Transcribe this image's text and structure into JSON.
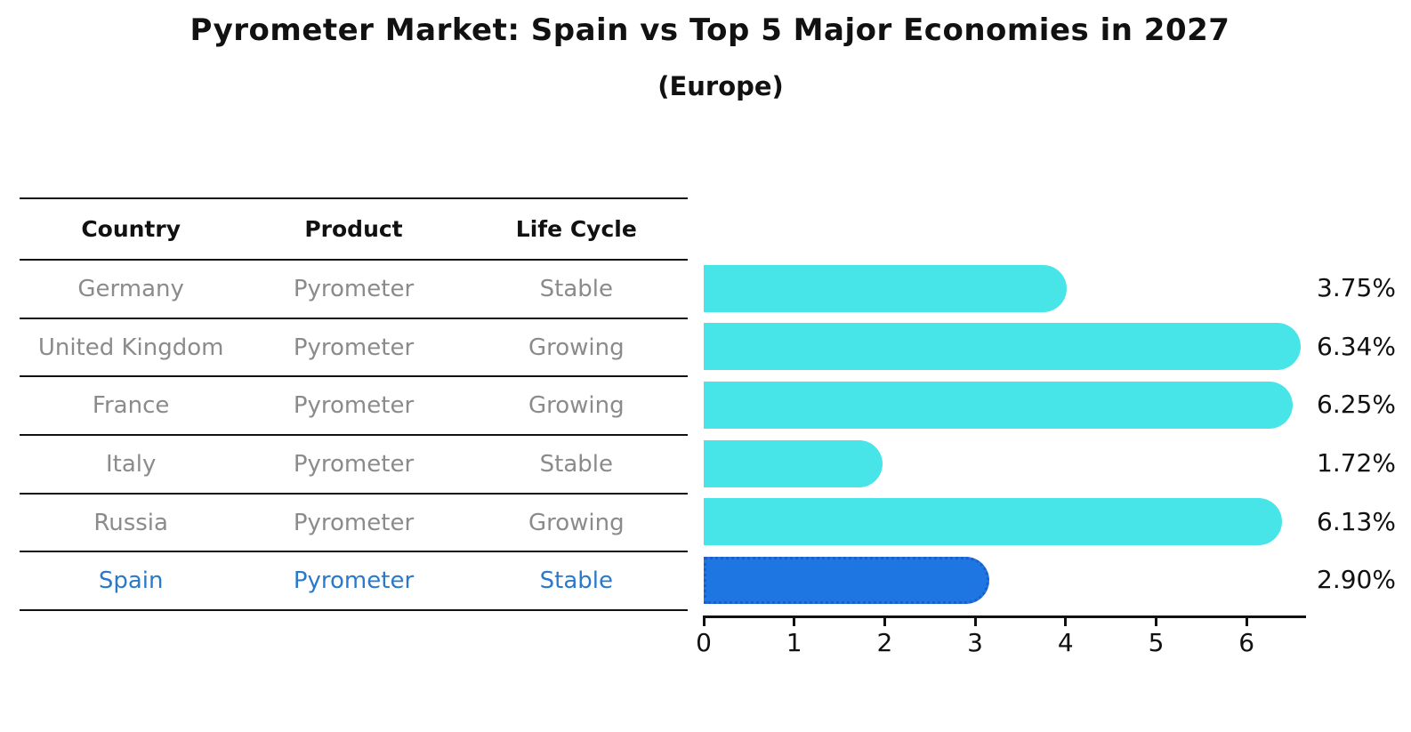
{
  "title": "Pyrometer Market: Spain vs Top 5 Major Economies in 2027",
  "subtitle": "(Europe)",
  "table": {
    "headers": [
      "Country",
      "Product",
      "Life Cycle"
    ],
    "rows": [
      {
        "country": "Germany",
        "product": "Pyrometer",
        "life_cycle": "Stable",
        "highlight": false
      },
      {
        "country": "United Kingdom",
        "product": "Pyrometer",
        "life_cycle": "Growing",
        "highlight": false
      },
      {
        "country": "France",
        "product": "Pyrometer",
        "life_cycle": "Growing",
        "highlight": false
      },
      {
        "country": "Italy",
        "product": "Pyrometer",
        "life_cycle": "Stable",
        "highlight": false
      },
      {
        "country": "Russia",
        "product": "Pyrometer",
        "life_cycle": "Growing",
        "highlight": false
      },
      {
        "country": "Spain",
        "product": "Pyrometer",
        "life_cycle": "Stable",
        "highlight": true
      }
    ]
  },
  "chart_data": {
    "type": "bar",
    "orientation": "horizontal",
    "title": "Pyrometer Market: Spain vs Top 5 Major Economies in 2027",
    "subtitle": "(Europe)",
    "categories": [
      "Germany",
      "United Kingdom",
      "France",
      "Italy",
      "Russia",
      "Spain"
    ],
    "values": [
      3.75,
      6.34,
      6.25,
      1.72,
      6.13,
      2.9
    ],
    "value_labels": [
      "3.75%",
      "6.34%",
      "6.25%",
      "1.72%",
      "6.13%",
      "2.90%"
    ],
    "highlight_index": 5,
    "xticks": [
      0,
      1,
      2,
      3,
      4,
      5,
      6
    ],
    "xlim": [
      0,
      6.65
    ],
    "grid": false,
    "legend": false,
    "bar_color": "#47e4e8",
    "highlight_bar_color": "#1e76e2",
    "highlight_border_color": "#1b5ecb",
    "axis_color": "#111111"
  },
  "colors": {
    "bar_cyan": "#47e4e8",
    "bar_blue": "#1e76e2",
    "highlight_text": "#2a79cb",
    "table_text": "#8b8b8b",
    "heading_text": "#111111"
  }
}
